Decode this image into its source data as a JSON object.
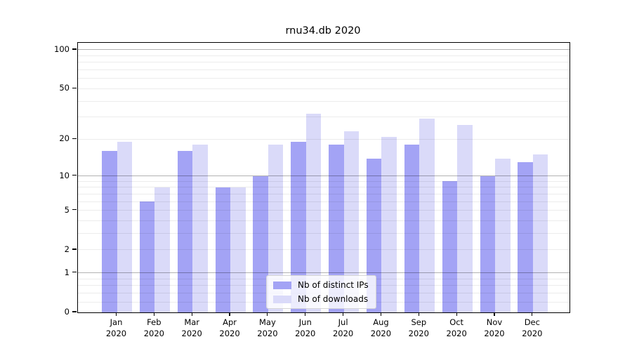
{
  "chart_data": {
    "type": "bar",
    "title": "rnu34.db 2020",
    "categories": [
      "Jan",
      "Feb",
      "Mar",
      "Apr",
      "May",
      "Jun",
      "Jul",
      "Aug",
      "Sep",
      "Oct",
      "Nov",
      "Dec"
    ],
    "category_year": "2020",
    "series": [
      {
        "name": "Nb of distinct IPs",
        "color": "#a3a3f5",
        "values": [
          16,
          6,
          16,
          8,
          10,
          19,
          18,
          14,
          18,
          9,
          10,
          13
        ]
      },
      {
        "name": "Nb of downloads",
        "color": "#dadaf9",
        "values": [
          19,
          8,
          18,
          8,
          18,
          32,
          23,
          21,
          29,
          26,
          14,
          15
        ]
      }
    ],
    "yscale": "log10(value+1)",
    "ylim": [
      0,
      113
    ],
    "yticks": [
      100,
      50,
      20,
      10,
      5,
      2,
      1,
      0
    ],
    "major_gridlines": [
      1,
      10,
      100
    ],
    "minor_gridlines": [
      0.2,
      0.4,
      0.6,
      0.8,
      2,
      3,
      4,
      5,
      6,
      7,
      8,
      9,
      20,
      30,
      40,
      50,
      60,
      70,
      80,
      90
    ],
    "grid": true,
    "legend": {
      "position": "lower center",
      "entries": [
        "Nb of distinct IPs",
        "Nb of downloads"
      ]
    }
  }
}
